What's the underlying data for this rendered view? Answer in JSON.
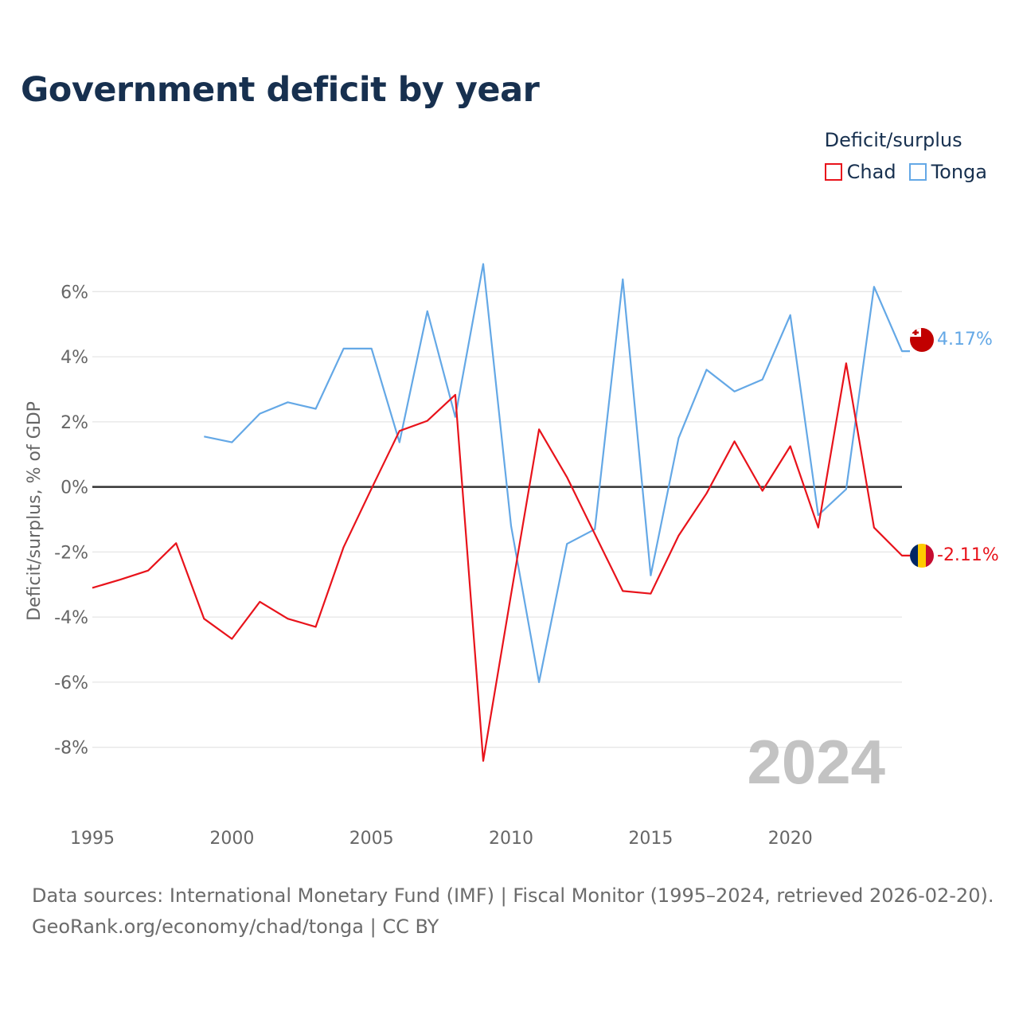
{
  "title": "Government deficit by year",
  "legend": {
    "title": "Deficit/surplus",
    "items": [
      {
        "label": "Chad",
        "color": "#e8131b"
      },
      {
        "label": "Tonga",
        "color": "#64a8e6"
      }
    ]
  },
  "chart_data": {
    "type": "line",
    "title": "Government deficit by year",
    "xlabel": "",
    "ylabel": "Deficit/surplus, % of GDP",
    "xlim": [
      1995,
      2024
    ],
    "ylim": [
      -9.5,
      7.5
    ],
    "x_ticks": [
      "1995",
      "2000",
      "2005",
      "2010",
      "2015",
      "2020"
    ],
    "y_ticks": [
      "6%",
      "4%",
      "2%",
      "0%",
      "-2%",
      "-4%",
      "-6%",
      "-8%"
    ],
    "y_tick_values": [
      6,
      4,
      2,
      0,
      -2,
      -4,
      -6,
      -8
    ],
    "watermark_year": "2024",
    "series": [
      {
        "name": "Chad",
        "color": "#e8131b",
        "end_label": "-2.11%",
        "points": [
          [
            1995,
            -3.1
          ],
          [
            1996,
            -2.85
          ],
          [
            1997,
            -2.57
          ],
          [
            1998,
            -1.73
          ],
          [
            1999,
            -4.05
          ],
          [
            2000,
            -4.67
          ],
          [
            2001,
            -3.53
          ],
          [
            2002,
            -4.05
          ],
          [
            2003,
            -4.3
          ],
          [
            2004,
            -1.85
          ],
          [
            2005,
            -0.05
          ],
          [
            2006,
            1.72
          ],
          [
            2007,
            2.03
          ],
          [
            2008,
            2.83
          ],
          [
            2009,
            -8.42
          ],
          [
            2010,
            -3.3
          ],
          [
            2011,
            1.77
          ],
          [
            2012,
            0.3
          ],
          [
            2013,
            -1.45
          ],
          [
            2014,
            -3.2
          ],
          [
            2015,
            -3.28
          ],
          [
            2016,
            -1.5
          ],
          [
            2017,
            -0.2
          ],
          [
            2018,
            1.4
          ],
          [
            2019,
            -0.12
          ],
          [
            2020,
            1.25
          ],
          [
            2021,
            -1.25
          ],
          [
            2022,
            3.8
          ],
          [
            2023,
            -1.25
          ],
          [
            2024,
            -2.11
          ]
        ]
      },
      {
        "name": "Tonga",
        "color": "#64a8e6",
        "end_label": "4.17%",
        "points": [
          [
            1999,
            1.55
          ],
          [
            2000,
            1.37
          ],
          [
            2001,
            2.25
          ],
          [
            2002,
            2.6
          ],
          [
            2003,
            2.4
          ],
          [
            2004,
            4.25
          ],
          [
            2005,
            4.25
          ],
          [
            2006,
            1.37
          ],
          [
            2007,
            5.4
          ],
          [
            2008,
            2.15
          ],
          [
            2009,
            6.85
          ],
          [
            2010,
            -1.2
          ],
          [
            2011,
            -6.0
          ],
          [
            2012,
            -1.75
          ],
          [
            2013,
            -1.3
          ],
          [
            2014,
            6.38
          ],
          [
            2015,
            -2.72
          ],
          [
            2016,
            1.5
          ],
          [
            2017,
            3.6
          ],
          [
            2018,
            2.93
          ],
          [
            2019,
            3.3
          ],
          [
            2020,
            5.28
          ],
          [
            2021,
            -0.87
          ],
          [
            2022,
            -0.07
          ],
          [
            2023,
            6.15
          ],
          [
            2024,
            4.17
          ]
        ]
      }
    ]
  },
  "footer": {
    "line1": "Data sources: International Monetary Fund (IMF) | Fiscal Monitor (1995–2024, retrieved 2026-02-20).",
    "line2": "GeoRank.org/economy/chad/tonga | CC BY"
  }
}
